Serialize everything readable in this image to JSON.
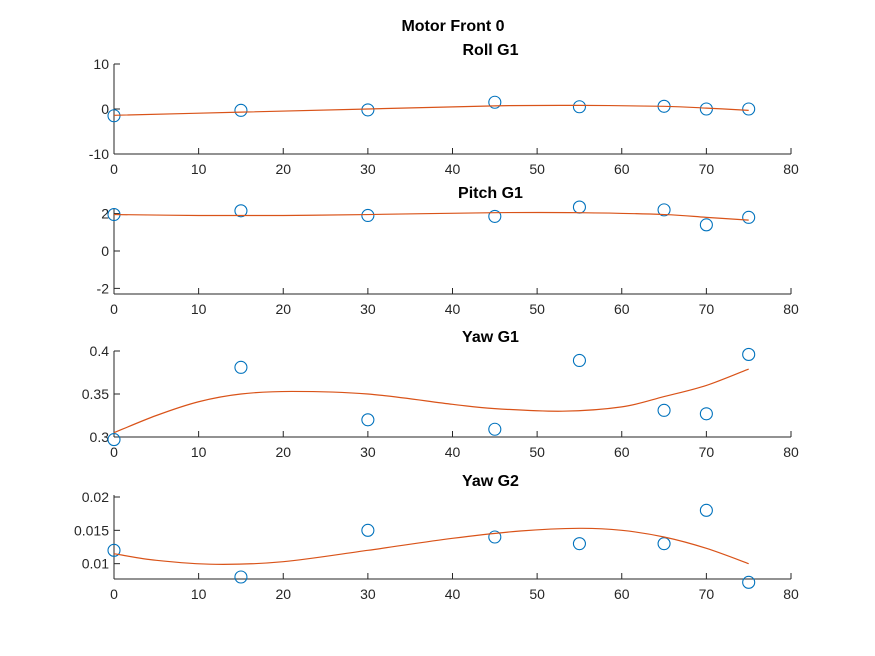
{
  "figure": {
    "title": "Motor Front 0",
    "marker_color": "#0072BD",
    "line_color": "#D95319"
  },
  "chart_data": [
    {
      "type": "scatter",
      "title": "Roll G1",
      "xlim": [
        0,
        80
      ],
      "ylim": [
        -10,
        10
      ],
      "xticks": [
        0,
        10,
        20,
        30,
        40,
        50,
        60,
        70,
        80
      ],
      "yticks": [
        -10,
        0,
        10
      ],
      "series": [
        {
          "kind": "markers",
          "x": [
            0,
            15,
            30,
            45,
            55,
            65,
            70,
            75
          ],
          "y": [
            -1.5,
            -0.3,
            -0.2,
            1.5,
            0.5,
            0.6,
            0.0,
            0.0
          ]
        },
        {
          "kind": "fit",
          "x": [
            0,
            15,
            30,
            45,
            55,
            65,
            70,
            75
          ],
          "y": [
            -1.4,
            -0.7,
            0.0,
            0.7,
            0.8,
            0.6,
            0.2,
            -0.3
          ]
        }
      ]
    },
    {
      "type": "scatter",
      "title": "Pitch G1",
      "xlim": [
        0,
        80
      ],
      "ylim": [
        -2.3,
        2.3
      ],
      "xticks": [
        0,
        10,
        20,
        30,
        40,
        50,
        60,
        70,
        80
      ],
      "yticks": [
        -2,
        0,
        2
      ],
      "series": [
        {
          "kind": "markers",
          "x": [
            0,
            15,
            30,
            45,
            55,
            65,
            70,
            75
          ],
          "y": [
            1.95,
            2.15,
            1.9,
            1.85,
            2.35,
            2.2,
            1.4,
            1.8
          ]
        },
        {
          "kind": "fit",
          "x": [
            0,
            10,
            20,
            30,
            45,
            55,
            65,
            70,
            75
          ],
          "y": [
            1.95,
            1.9,
            1.9,
            1.95,
            2.05,
            2.05,
            1.95,
            1.8,
            1.65
          ]
        }
      ]
    },
    {
      "type": "scatter",
      "title": "Yaw G1",
      "xlim": [
        0,
        80
      ],
      "ylim": [
        0.3,
        0.4
      ],
      "xticks": [
        0,
        10,
        20,
        30,
        40,
        50,
        60,
        70,
        80
      ],
      "yticks": [
        0.3,
        0.35,
        0.4
      ],
      "series": [
        {
          "kind": "markers",
          "x": [
            0,
            15,
            30,
            45,
            55,
            65,
            70,
            75
          ],
          "y": [
            0.297,
            0.381,
            0.32,
            0.309,
            0.389,
            0.331,
            0.327,
            0.396
          ]
        },
        {
          "kind": "fit",
          "x": [
            0,
            5,
            10,
            15,
            21,
            30,
            40,
            45,
            53,
            60,
            65,
            70,
            75
          ],
          "y": [
            0.305,
            0.325,
            0.341,
            0.35,
            0.353,
            0.35,
            0.338,
            0.333,
            0.33,
            0.335,
            0.347,
            0.36,
            0.379
          ]
        }
      ]
    },
    {
      "type": "scatter",
      "title": "Yaw G2",
      "xlim": [
        0,
        80
      ],
      "ylim": [
        0.0077,
        0.0203
      ],
      "xticks": [
        0,
        10,
        20,
        30,
        40,
        50,
        60,
        70,
        80
      ],
      "yticks": [
        0.01,
        0.015,
        0.02
      ],
      "series": [
        {
          "kind": "markers",
          "x": [
            0,
            15,
            30,
            45,
            55,
            65,
            70,
            75
          ],
          "y": [
            0.012,
            0.008,
            0.015,
            0.014,
            0.013,
            0.013,
            0.018,
            0.0072
          ]
        },
        {
          "kind": "fit",
          "x": [
            0,
            5,
            12,
            20,
            30,
            40,
            48,
            55,
            60,
            65,
            70,
            75
          ],
          "y": [
            0.0115,
            0.0105,
            0.0099,
            0.0103,
            0.012,
            0.0138,
            0.0149,
            0.0153,
            0.015,
            0.014,
            0.0123,
            0.01
          ]
        }
      ]
    }
  ]
}
